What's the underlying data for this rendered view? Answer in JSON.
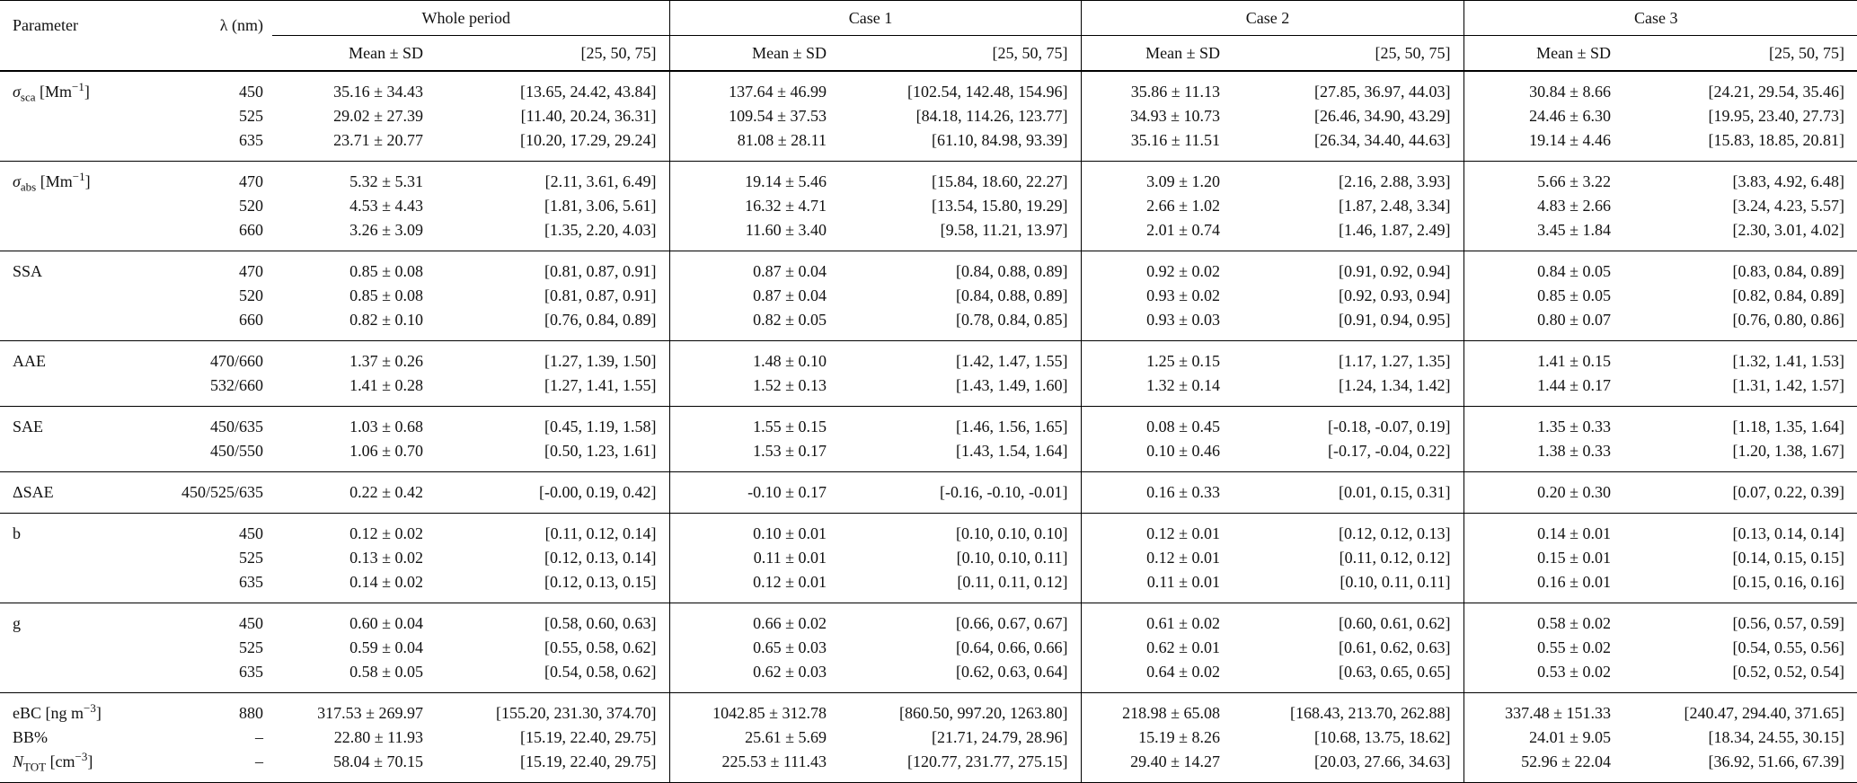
{
  "header": {
    "parameter": "Parameter",
    "wavelength": "λ (nm)",
    "periods": [
      "Whole period",
      "Case 1",
      "Case 2",
      "Case 3"
    ],
    "subheaders": [
      "Mean ± SD",
      "[25, 50, 75]"
    ]
  },
  "groups": [
    {
      "rows": [
        {
          "parameter": [
            {
              "text": "σ",
              "style": "italic"
            },
            {
              "text": "sca",
              "style": "sub"
            },
            {
              "text": " [Mm"
            },
            {
              "text": "−1",
              "style": "sup"
            },
            {
              "text": "]"
            }
          ],
          "wavelength": "450",
          "values": [
            "35.16 ± 34.43",
            "[13.65, 24.42, 43.84]",
            "137.64 ± 46.99",
            "[102.54, 142.48, 154.96]",
            "35.86 ± 11.13",
            "[27.85, 36.97, 44.03]",
            "30.84 ± 8.66",
            "[24.21, 29.54, 35.46]"
          ]
        },
        {
          "wavelength": "525",
          "values": [
            "29.02 ± 27.39",
            "[11.40, 20.24, 36.31]",
            "109.54 ± 37.53",
            "[84.18, 114.26, 123.77]",
            "34.93 ± 10.73",
            "[26.46, 34.90, 43.29]",
            "24.46 ± 6.30",
            "[19.95, 23.40, 27.73]"
          ]
        },
        {
          "wavelength": "635",
          "values": [
            "23.71 ± 20.77",
            "[10.20, 17.29, 29.24]",
            "81.08 ± 28.11",
            "[61.10, 84.98, 93.39]",
            "35.16 ± 11.51",
            "[26.34, 34.40, 44.63]",
            "19.14 ± 4.46",
            "[15.83, 18.85, 20.81]"
          ]
        }
      ]
    },
    {
      "rows": [
        {
          "parameter": [
            {
              "text": "σ",
              "style": "italic"
            },
            {
              "text": "abs",
              "style": "sub"
            },
            {
              "text": " [Mm"
            },
            {
              "text": "−1",
              "style": "sup"
            },
            {
              "text": "]"
            }
          ],
          "wavelength": "470",
          "values": [
            "5.32 ± 5.31",
            "[2.11, 3.61, 6.49]",
            "19.14 ± 5.46",
            "[15.84, 18.60, 22.27]",
            "3.09 ± 1.20",
            "[2.16, 2.88, 3.93]",
            "5.66 ± 3.22",
            "[3.83, 4.92, 6.48]"
          ]
        },
        {
          "wavelength": "520",
          "values": [
            "4.53 ± 4.43",
            "[1.81, 3.06, 5.61]",
            "16.32 ± 4.71",
            "[13.54, 15.80, 19.29]",
            "2.66 ± 1.02",
            "[1.87, 2.48, 3.34]",
            "4.83 ± 2.66",
            "[3.24, 4.23, 5.57]"
          ]
        },
        {
          "wavelength": "660",
          "values": [
            "3.26 ± 3.09",
            "[1.35, 2.20, 4.03]",
            "11.60 ± 3.40",
            "[9.58, 11.21, 13.97]",
            "2.01 ± 0.74",
            "[1.46, 1.87, 2.49]",
            "3.45 ± 1.84",
            "[2.30, 3.01, 4.02]"
          ]
        }
      ]
    },
    {
      "rows": [
        {
          "parameter": [
            {
              "text": "SSA"
            }
          ],
          "wavelength": "470",
          "values": [
            "0.85 ± 0.08",
            "[0.81, 0.87, 0.91]",
            "0.87 ± 0.04",
            "[0.84, 0.88, 0.89]",
            "0.92 ± 0.02",
            "[0.91, 0.92, 0.94]",
            "0.84 ± 0.05",
            "[0.83, 0.84, 0.89]"
          ]
        },
        {
          "wavelength": "520",
          "values": [
            "0.85 ± 0.08",
            "[0.81, 0.87, 0.91]",
            "0.87 ± 0.04",
            "[0.84, 0.88, 0.89]",
            "0.93 ± 0.02",
            "[0.92, 0.93, 0.94]",
            "0.85 ± 0.05",
            "[0.82, 0.84, 0.89]"
          ]
        },
        {
          "wavelength": "660",
          "values": [
            "0.82 ± 0.10",
            "[0.76, 0.84, 0.89]",
            "0.82 ± 0.05",
            "[0.78, 0.84, 0.85]",
            "0.93 ± 0.03",
            "[0.91, 0.94, 0.95]",
            "0.80 ± 0.07",
            "[0.76, 0.80, 0.86]"
          ]
        }
      ]
    },
    {
      "rows": [
        {
          "parameter": [
            {
              "text": "AAE"
            }
          ],
          "wavelength": "470/660",
          "values": [
            "1.37 ± 0.26",
            "[1.27, 1.39, 1.50]",
            "1.48 ± 0.10",
            "[1.42, 1.47, 1.55]",
            "1.25 ± 0.15",
            "[1.17, 1.27, 1.35]",
            "1.41 ± 0.15",
            "[1.32, 1.41, 1.53]"
          ]
        },
        {
          "wavelength": "532/660",
          "values": [
            "1.41 ± 0.28",
            "[1.27, 1.41, 1.55]",
            "1.52 ± 0.13",
            "[1.43, 1.49, 1.60]",
            "1.32 ± 0.14",
            "[1.24, 1.34, 1.42]",
            "1.44 ± 0.17",
            "[1.31, 1.42, 1.57]"
          ]
        }
      ]
    },
    {
      "rows": [
        {
          "parameter": [
            {
              "text": "SAE"
            }
          ],
          "wavelength": "450/635",
          "values": [
            "1.03 ± 0.68",
            "[0.45, 1.19, 1.58]",
            "1.55 ± 0.15",
            "[1.46, 1.56, 1.65]",
            "0.08 ± 0.45",
            "[-0.18, -0.07, 0.19]",
            "1.35 ± 0.33",
            "[1.18, 1.35, 1.64]"
          ]
        },
        {
          "wavelength": "450/550",
          "values": [
            "1.06 ± 0.70",
            "[0.50, 1.23, 1.61]",
            "1.53 ± 0.17",
            "[1.43, 1.54, 1.64]",
            "0.10 ± 0.46",
            "[-0.17, -0.04, 0.22]",
            "1.38 ± 0.33",
            "[1.20, 1.38, 1.67]"
          ]
        }
      ]
    },
    {
      "rows": [
        {
          "parameter": [
            {
              "text": "ΔSAE"
            }
          ],
          "wavelength": "450/525/635",
          "values": [
            "0.22 ± 0.42",
            "[-0.00, 0.19, 0.42]",
            "-0.10 ± 0.17",
            "[-0.16, -0.10, -0.01]",
            "0.16 ± 0.33",
            "[0.01, 0.15, 0.31]",
            "0.20 ± 0.30",
            "[0.07, 0.22, 0.39]"
          ]
        }
      ]
    },
    {
      "rows": [
        {
          "parameter": [
            {
              "text": "b"
            }
          ],
          "wavelength": "450",
          "values": [
            "0.12 ± 0.02",
            "[0.11, 0.12, 0.14]",
            "0.10 ± 0.01",
            "[0.10, 0.10, 0.10]",
            "0.12 ± 0.01",
            "[0.12, 0.12, 0.13]",
            "0.14 ± 0.01",
            "[0.13, 0.14, 0.14]"
          ]
        },
        {
          "wavelength": "525",
          "values": [
            "0.13 ± 0.02",
            "[0.12, 0.13, 0.14]",
            "0.11 ± 0.01",
            "[0.10, 0.10, 0.11]",
            "0.12 ± 0.01",
            "[0.11, 0.12, 0.12]",
            "0.15 ± 0.01",
            "[0.14, 0.15, 0.15]"
          ]
        },
        {
          "wavelength": "635",
          "values": [
            "0.14 ± 0.02",
            "[0.12, 0.13, 0.15]",
            "0.12 ± 0.01",
            "[0.11, 0.11, 0.12]",
            "0.11 ± 0.01",
            "[0.10, 0.11, 0.11]",
            "0.16 ± 0.01",
            "[0.15, 0.16, 0.16]"
          ]
        }
      ]
    },
    {
      "rows": [
        {
          "parameter": [
            {
              "text": "g"
            }
          ],
          "wavelength": "450",
          "values": [
            "0.60 ± 0.04",
            "[0.58, 0.60, 0.63]",
            "0.66 ± 0.02",
            "[0.66, 0.67, 0.67]",
            "0.61 ± 0.02",
            "[0.60, 0.61, 0.62]",
            "0.58 ± 0.02",
            "[0.56, 0.57, 0.59]"
          ]
        },
        {
          "wavelength": "525",
          "values": [
            "0.59 ± 0.04",
            "[0.55, 0.58, 0.62]",
            "0.65 ± 0.03",
            "[0.64, 0.66, 0.66]",
            "0.62 ± 0.01",
            "[0.61, 0.62, 0.63]",
            "0.55 ± 0.02",
            "[0.54, 0.55, 0.56]"
          ]
        },
        {
          "wavelength": "635",
          "values": [
            "0.58 ± 0.05",
            "[0.54, 0.58, 0.62]",
            "0.62 ± 0.03",
            "[0.62, 0.63, 0.64]",
            "0.64 ± 0.02",
            "[0.63, 0.65, 0.65]",
            "0.53 ± 0.02",
            "[0.52, 0.52, 0.54]"
          ]
        }
      ]
    },
    {
      "rows": [
        {
          "parameter": [
            {
              "text": "eBC [ng m"
            },
            {
              "text": "−3",
              "style": "sup"
            },
            {
              "text": "]"
            }
          ],
          "wavelength": "880",
          "values": [
            "317.53 ± 269.97",
            "[155.20, 231.30, 374.70]",
            "1042.85 ± 312.78",
            "[860.50, 997.20, 1263.80]",
            "218.98 ± 65.08",
            "[168.43, 213.70, 262.88]",
            "337.48 ± 151.33",
            "[240.47, 294.40, 371.65]"
          ]
        },
        {
          "parameter": [
            {
              "text": "BB%"
            }
          ],
          "wavelength": "–",
          "values": [
            "22.80 ± 11.93",
            "[15.19, 22.40, 29.75]",
            "25.61 ± 5.69",
            "[21.71, 24.79, 28.96]",
            "15.19 ± 8.26",
            "[10.68, 13.75, 18.62]",
            "24.01 ± 9.05",
            "[18.34, 24.55, 30.15]"
          ]
        },
        {
          "parameter": [
            {
              "text": "N",
              "style": "italic"
            },
            {
              "text": "TOT",
              "style": "sub"
            },
            {
              "text": " [cm"
            },
            {
              "text": "−3",
              "style": "sup"
            },
            {
              "text": "]"
            }
          ],
          "wavelength": "–",
          "values": [
            "58.04 ± 70.15",
            "[15.19, 22.40, 29.75]",
            "225.53 ± 111.43",
            "[120.77, 231.77, 275.15]",
            "29.40 ± 14.27",
            "[20.03, 27.66, 34.63]",
            "52.96 ± 22.04",
            "[36.92, 51.66, 67.39]"
          ]
        }
      ]
    }
  ]
}
